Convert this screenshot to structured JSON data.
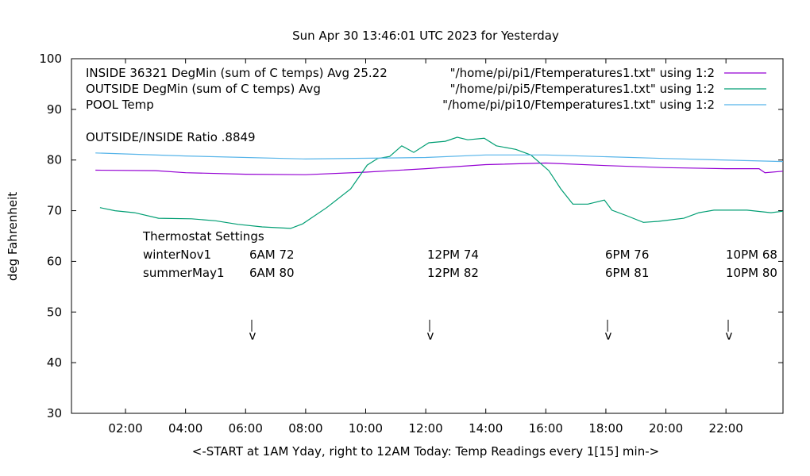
{
  "chart_data": {
    "type": "line",
    "title": "Sun Apr 30 13:46:01 UTC 2023 for Yesterday",
    "xlabel": "<-START at 1AM Yday, right to 12AM Today:  Temp Readings every 1[15] min->",
    "ylabel": "deg Fahrenheit",
    "ylim": [
      30,
      100
    ],
    "xlim_hours": [
      0.2,
      23.9
    ],
    "yticks": [
      "30",
      "40",
      "50",
      "60",
      "70",
      "80",
      "90",
      "100"
    ],
    "xticks": [
      "02:00",
      "04:00",
      "06:00",
      "08:00",
      "10:00",
      "12:00",
      "14:00",
      "16:00",
      "18:00",
      "20:00",
      "22:00"
    ],
    "grid": false,
    "legend_placement": "top-right",
    "legend_titles": [
      "INSIDE 36321 DegMin (sum of C temps) Avg 25.22",
      "OUTSIDE  DegMin (sum of C temps) Avg",
      "POOL Temp"
    ],
    "series": [
      {
        "name": "\"/home/pi/pi1/Ftemperatures1.txt\" using 1:2",
        "color": "#9400d3",
        "points": [
          [
            1,
            78
          ],
          [
            3,
            77.9
          ],
          [
            4,
            77.5
          ],
          [
            6,
            77.2
          ],
          [
            8,
            77.1
          ],
          [
            10,
            77.6
          ],
          [
            12,
            78.3
          ],
          [
            14,
            79.1
          ],
          [
            16,
            79.4
          ],
          [
            18,
            78.9
          ],
          [
            20,
            78.5
          ],
          [
            22,
            78.3
          ],
          [
            23.1,
            78.3
          ],
          [
            23.3,
            77.5
          ],
          [
            23.9,
            77.8
          ]
        ]
      },
      {
        "name": "\"/home/pi/pi5/Ftemperatures1.txt\" using 1:2",
        "color": "#009e73",
        "points": [
          [
            1.15,
            70.6
          ],
          [
            1.65,
            70
          ],
          [
            2.3,
            69.6
          ],
          [
            3.1,
            68.5
          ],
          [
            4.2,
            68.4
          ],
          [
            5,
            68
          ],
          [
            5.75,
            67.3
          ],
          [
            6.55,
            66.8
          ],
          [
            7.5,
            66.5
          ],
          [
            7.9,
            67.4
          ],
          [
            8.7,
            70.6
          ],
          [
            9.5,
            74.3
          ],
          [
            10.05,
            79
          ],
          [
            10.4,
            80.3
          ],
          [
            10.8,
            80.7
          ],
          [
            11.2,
            82.8
          ],
          [
            11.6,
            81.5
          ],
          [
            12.1,
            83.4
          ],
          [
            12.65,
            83.7
          ],
          [
            13.05,
            84.5
          ],
          [
            13.4,
            84
          ],
          [
            13.95,
            84.3
          ],
          [
            14.35,
            82.8
          ],
          [
            15,
            82.1
          ],
          [
            15.5,
            81
          ],
          [
            16.1,
            77.9
          ],
          [
            16.5,
            74.3
          ],
          [
            16.9,
            71.3
          ],
          [
            17.4,
            71.3
          ],
          [
            17.95,
            72.1
          ],
          [
            18.2,
            70.1
          ],
          [
            18.7,
            69
          ],
          [
            19.25,
            67.7
          ],
          [
            19.75,
            67.9
          ],
          [
            20.6,
            68.5
          ],
          [
            21.1,
            69.6
          ],
          [
            21.6,
            70.1
          ],
          [
            22.7,
            70.1
          ],
          [
            23.5,
            69.6
          ],
          [
            23.9,
            69.9
          ]
        ]
      },
      {
        "name": "\"/home/pi/pi10/Ftemperatures1.txt\" using 1:2",
        "color": "#56b4e9",
        "points": [
          [
            1,
            81.4
          ],
          [
            4,
            80.8
          ],
          [
            8,
            80.2
          ],
          [
            12,
            80.5
          ],
          [
            14,
            81.0
          ],
          [
            16,
            81.0
          ],
          [
            20,
            80.3
          ],
          [
            23.9,
            79.7
          ]
        ]
      }
    ],
    "annotations": {
      "ratio": "OUTSIDE/INSIDE Ratio .8849",
      "thermostat_title": "Thermostat Settings",
      "rows": [
        {
          "label": "winterNov1",
          "settings": [
            "6AM 72",
            "12PM 74",
            "6PM 76",
            "10PM 68"
          ]
        },
        {
          "label": "summerMay1",
          "settings": [
            "6AM 80",
            "12PM 82",
            "6PM 81",
            "10PM 80"
          ]
        }
      ],
      "arrow_hours": [
        6,
        12,
        18,
        22
      ],
      "arrow_glyph": "v"
    }
  }
}
